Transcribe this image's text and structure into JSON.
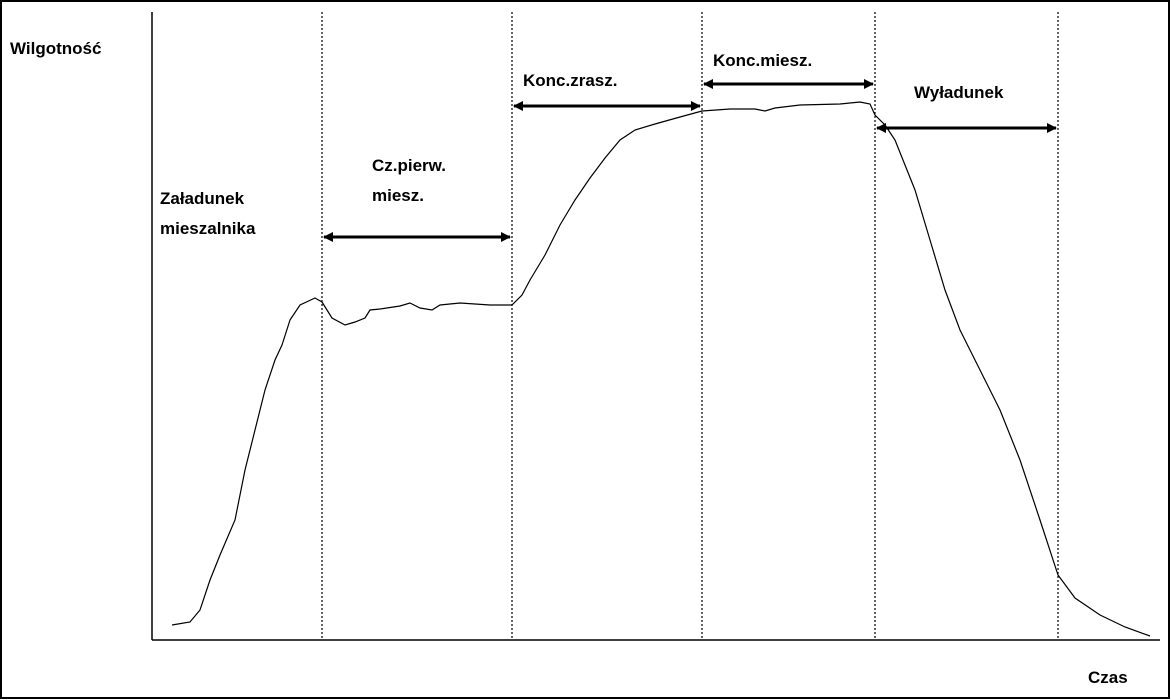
{
  "axes": {
    "y_label": "Wilgotność",
    "x_label": "Czas"
  },
  "phases": [
    {
      "lines": [
        "Załadunek",
        "mieszalnika"
      ]
    },
    {
      "lines": [
        "Cz.pierw.",
        "miesz."
      ]
    },
    {
      "lines": [
        "Konc.zrasz."
      ]
    },
    {
      "lines": [
        "Konc.miesz."
      ]
    },
    {
      "lines": [
        "Wyładunek"
      ]
    }
  ]
}
